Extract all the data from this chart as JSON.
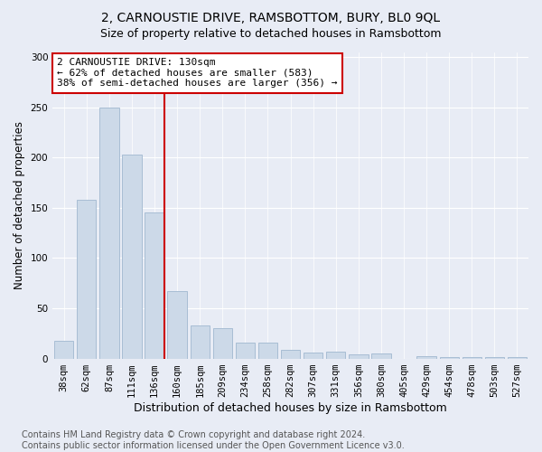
{
  "title": "2, CARNOUSTIE DRIVE, RAMSBOTTOM, BURY, BL0 9QL",
  "subtitle": "Size of property relative to detached houses in Ramsbottom",
  "xlabel": "Distribution of detached houses by size in Ramsbottom",
  "ylabel": "Number of detached properties",
  "categories": [
    "38sqm",
    "62sqm",
    "87sqm",
    "111sqm",
    "136sqm",
    "160sqm",
    "185sqm",
    "209sqm",
    "234sqm",
    "258sqm",
    "282sqm",
    "307sqm",
    "331sqm",
    "356sqm",
    "380sqm",
    "405sqm",
    "429sqm",
    "454sqm",
    "478sqm",
    "503sqm",
    "527sqm"
  ],
  "values": [
    18,
    158,
    250,
    203,
    145,
    67,
    33,
    30,
    16,
    16,
    9,
    6,
    7,
    4,
    5,
    0,
    2,
    1,
    1,
    1,
    1
  ],
  "bar_color": "#ccd9e8",
  "bar_edge_color": "#a8bdd4",
  "vline_color": "#cc0000",
  "vline_index": 4,
  "annotation_text": "2 CARNOUSTIE DRIVE: 130sqm\n← 62% of detached houses are smaller (583)\n38% of semi-detached houses are larger (356) →",
  "annotation_box_facecolor": "#ffffff",
  "annotation_box_edgecolor": "#cc0000",
  "ylim": [
    0,
    305
  ],
  "yticks": [
    0,
    50,
    100,
    150,
    200,
    250,
    300
  ],
  "bg_color": "#e8ecf5",
  "plot_bg_color": "#e8ecf5",
  "footer": "Contains HM Land Registry data © Crown copyright and database right 2024.\nContains public sector information licensed under the Open Government Licence v3.0.",
  "title_fontsize": 10,
  "subtitle_fontsize": 9,
  "xlabel_fontsize": 9,
  "ylabel_fontsize": 8.5,
  "tick_fontsize": 7.5,
  "annotation_fontsize": 8,
  "footer_fontsize": 7
}
